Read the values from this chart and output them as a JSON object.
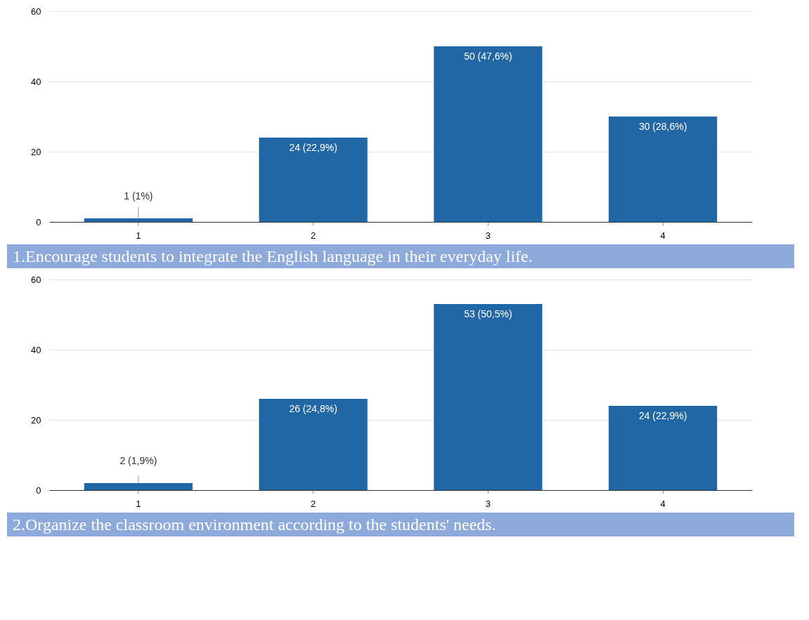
{
  "chart_data": [
    {
      "type": "bar",
      "categories": [
        "1",
        "2",
        "3",
        "4"
      ],
      "values": [
        1,
        24,
        50,
        30
      ],
      "value_labels": [
        "1 (1%)",
        "24 (22,9%)",
        "50 (47,6%)",
        "30 (28,6%)"
      ],
      "color": "#2166a5",
      "ylim": [
        0,
        60
      ],
      "yticks": [
        0,
        20,
        40,
        60
      ],
      "grid": "y",
      "annotations": [
        "1.Encourage students to integrate the English language in their everyday life."
      ]
    },
    {
      "type": "bar",
      "categories": [
        "1",
        "2",
        "3",
        "4"
      ],
      "values": [
        2,
        26,
        53,
        24
      ],
      "value_labels": [
        "2 (1,9%)",
        "26 (24,8%)",
        "53 (50,5%)",
        "24 (22,9%)"
      ],
      "color": "#2166a5",
      "ylim": [
        0,
        60
      ],
      "yticks": [
        0,
        20,
        40,
        60
      ],
      "grid": "y",
      "annotations": [
        "2.Organize the classroom environment according to the students' needs."
      ]
    }
  ]
}
